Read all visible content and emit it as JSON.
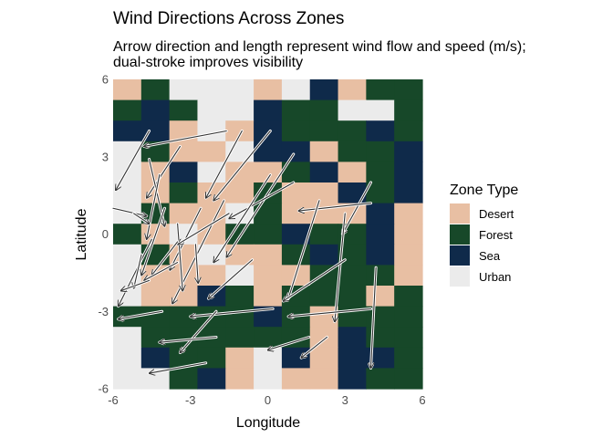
{
  "chart_data": {
    "type": "heatmap",
    "title": "Wind Directions Across Zones",
    "subtitle_lines": [
      "Arrow direction and length represent wind flow and speed (m/s);",
      "dual-stroke improves visibility"
    ],
    "xlabel": "Longitude",
    "ylabel": "Latitude",
    "xlim": [
      -6,
      6
    ],
    "ylim": [
      -6,
      6
    ],
    "x_ticks": [
      -6,
      -3,
      0,
      3,
      6
    ],
    "y_ticks": [
      -6,
      -3,
      0,
      3,
      6
    ],
    "cell_size": 1,
    "legend": {
      "title": "Zone Type",
      "position": "right",
      "entries": [
        {
          "key": "D",
          "label": "Desert",
          "color": "#e8bfa3"
        },
        {
          "key": "F",
          "label": "Forest",
          "color": "#174829"
        },
        {
          "key": "S",
          "label": "Sea",
          "color": "#0f2a4a"
        },
        {
          "key": "U",
          "label": "Urban",
          "color": "#ebebeb"
        }
      ]
    },
    "grid_rows_top_to_bottom": [
      "DFUUUDUSDFF",
      "FSFUUSFFUUF",
      "SSDUDSFFFSF",
      "UFDDUSSDFFS",
      "UDSUDDFSDFS",
      "UDFDDFDDSFS",
      "UFDDUFDDDSD",
      "FDUDFFSFFSD",
      "UFDUDDFSFSD",
      "UDDDUDDFFFD",
      "UDDSFDFFFDF",
      "FFFFFSFDFFF",
      "UFFFFFFDSFF",
      "USFFDUSDSSF",
      "UUFSDUDDSFF"
    ],
    "arrows": [
      {
        "x": -1.6,
        "y": 4.0,
        "u": -3.2,
        "v": -0.6
      },
      {
        "x": -1.0,
        "y": 4.0,
        "u": -1.4,
        "v": -2.6
      },
      {
        "x": 0.1,
        "y": 4.0,
        "u": -2.2,
        "v": -2.7
      },
      {
        "x": -4.6,
        "y": 4.0,
        "u": -1.3,
        "v": -2.3
      },
      {
        "x": -3.4,
        "y": 3.4,
        "u": -1.3,
        "v": -2.0
      },
      {
        "x": 1.0,
        "y": 3.1,
        "u": -2.6,
        "v": -4.0
      },
      {
        "x": -4.6,
        "y": 2.9,
        "u": 0.6,
        "v": -2.6
      },
      {
        "x": -4.2,
        "y": 2.3,
        "u": -0.5,
        "v": -2.5
      },
      {
        "x": 1.0,
        "y": 2.0,
        "u": -2.5,
        "v": -1.4
      },
      {
        "x": 0.1,
        "y": 2.3,
        "u": -2.2,
        "v": -3.4
      },
      {
        "x": 4.0,
        "y": 2.0,
        "u": -1.1,
        "v": -2.0
      },
      {
        "x": 4.0,
        "y": 1.2,
        "u": -2.8,
        "v": -0.3
      },
      {
        "x": -6.0,
        "y": 1.0,
        "u": 1.3,
        "v": -0.3
      },
      {
        "x": -5.2,
        "y": 0.8,
        "u": 0.6,
        "v": -0.4
      },
      {
        "x": -4.0,
        "y": 1.0,
        "u": -0.9,
        "v": -2.6
      },
      {
        "x": -1.7,
        "y": 1.3,
        "u": -2.0,
        "v": -4.0
      },
      {
        "x": -2.6,
        "y": 1.0,
        "u": -1.2,
        "v": -2.4
      },
      {
        "x": -3.5,
        "y": 0.4,
        "u": 0.2,
        "v": -2.6
      },
      {
        "x": -1.5,
        "y": 0.8,
        "u": -2.0,
        "v": -1.2
      },
      {
        "x": 3.0,
        "y": 0.8,
        "u": -0.4,
        "v": -4.2
      },
      {
        "x": 2.0,
        "y": 1.3,
        "u": -1.2,
        "v": -3.8
      },
      {
        "x": 4.2,
        "y": -1.3,
        "u": -0.2,
        "v": -3.9
      },
      {
        "x": -4.5,
        "y": -0.2,
        "u": -1.3,
        "v": -2.6
      },
      {
        "x": -3.5,
        "y": -0.3,
        "u": -1.0,
        "v": -1.3
      },
      {
        "x": -2.8,
        "y": -0.4,
        "u": 0.1,
        "v": -1.5
      },
      {
        "x": -4.9,
        "y": -0.8,
        "u": -0.3,
        "v": -1.3
      },
      {
        "x": 3.0,
        "y": -1.0,
        "u": -2.4,
        "v": -1.6
      },
      {
        "x": -0.6,
        "y": -1.0,
        "u": -1.7,
        "v": -1.5
      },
      {
        "x": -3.5,
        "y": -1.1,
        "u": -1.3,
        "v": -0.7
      },
      {
        "x": -4.6,
        "y": -1.8,
        "u": -1.1,
        "v": -0.4
      },
      {
        "x": -4.1,
        "y": -3.0,
        "u": -1.7,
        "v": -0.3
      },
      {
        "x": 0.2,
        "y": -2.9,
        "u": -3.2,
        "v": -0.3
      },
      {
        "x": -2.0,
        "y": -3.0,
        "u": -1.4,
        "v": -1.6
      },
      {
        "x": 4.0,
        "y": -2.9,
        "u": -3.2,
        "v": -0.3
      },
      {
        "x": -2.0,
        "y": -4.0,
        "u": -2.2,
        "v": -0.2
      },
      {
        "x": 2.3,
        "y": -4.0,
        "u": -1.0,
        "v": -0.8
      },
      {
        "x": 1.6,
        "y": -4.0,
        "u": -1.6,
        "v": -0.5
      },
      {
        "x": -2.4,
        "y": -5.0,
        "u": -2.2,
        "v": -0.4
      }
    ]
  }
}
